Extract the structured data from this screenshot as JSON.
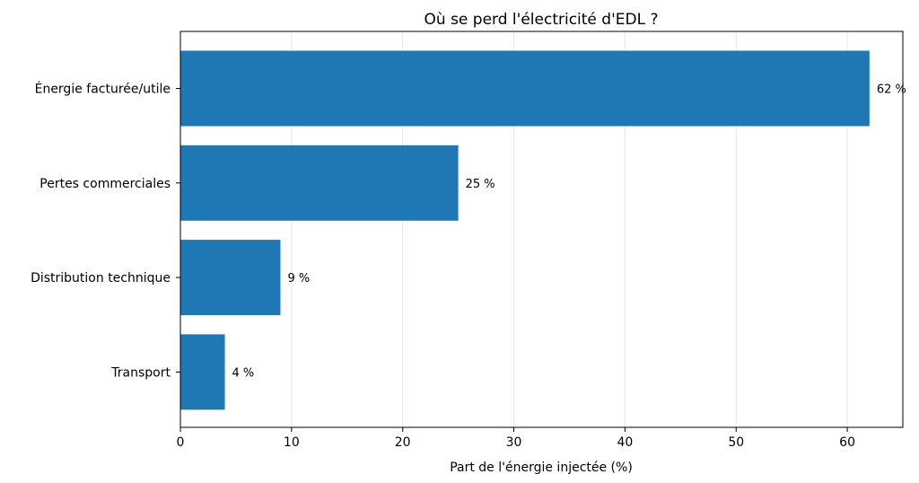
{
  "chart_data": {
    "type": "bar",
    "orientation": "horizontal",
    "title": "Où se perd l'électricité d'EDL ?",
    "xlabel": "Part de l'énergie injectée (%)",
    "ylabel": "",
    "categories": [
      "Énergie facturée/utile",
      "Pertes commerciales",
      "Distribution technique",
      "Transport"
    ],
    "values": [
      62,
      25,
      9,
      4
    ],
    "value_labels": [
      "62 %",
      "25 %",
      "9 %",
      "4 %"
    ],
    "xlim": [
      0,
      65
    ],
    "xticks": [
      0,
      10,
      20,
      30,
      40,
      50,
      60
    ],
    "grid": "vertical",
    "bar_color": "#1f77b4"
  }
}
